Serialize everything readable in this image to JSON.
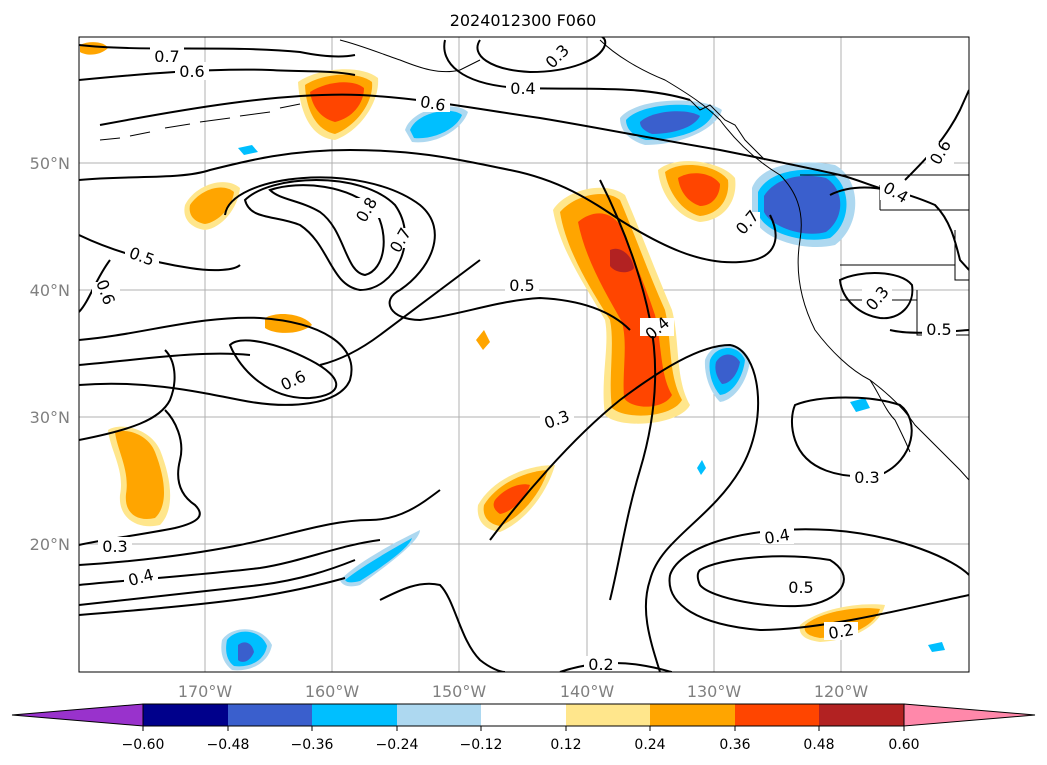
{
  "title": "2024012300 F060",
  "lat_labels": [
    "50°N",
    "40°N",
    "30°N",
    "20°N"
  ],
  "lon_labels": [
    "170°W",
    "160°W",
    "150°W",
    "140°W",
    "130°W",
    "120°W"
  ],
  "contour_labels": [
    "0.7",
    "0.6",
    "0.3",
    "0.4",
    "0.6",
    "0.8",
    "0.7",
    "0.5",
    "0.6",
    "0.5",
    "0.6",
    "0.4",
    "0.3",
    "0.3",
    "0.4",
    "0.5",
    "0.3",
    "0.5",
    "0.2",
    "0.2",
    "0.3",
    "0.4",
    "0.4",
    "0.6",
    "0.7"
  ],
  "colorbar": {
    "tick_labels": [
      "−0.60",
      "−0.48",
      "−0.36",
      "−0.24",
      "−0.12",
      "0.12",
      "0.24",
      "0.36",
      "0.48",
      "0.60"
    ],
    "colors": [
      "#9932cc",
      "#00008b",
      "#3a5fcd",
      "#00bfff",
      "#add8f0",
      "#ffffff",
      "#ffe68c",
      "#ffa500",
      "#ff4500",
      "#b22222",
      "#ff88aa"
    ]
  }
}
